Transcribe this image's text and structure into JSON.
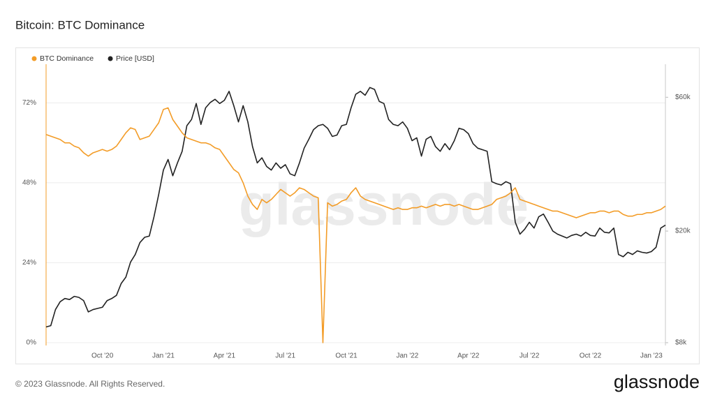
{
  "chart_data": {
    "type": "line",
    "title": "Bitcoin: BTC Dominance",
    "watermark": "glassnode",
    "categories": [
      null,
      null,
      null,
      null,
      null,
      null,
      null,
      null,
      null,
      null,
      null,
      null,
      "Oct '20",
      null,
      null,
      null,
      null,
      null,
      null,
      null,
      null,
      null,
      null,
      null,
      null,
      "Jan '21",
      null,
      null,
      null,
      null,
      null,
      null,
      null,
      null,
      null,
      null,
      null,
      null,
      "Apr '21",
      null,
      null,
      null,
      null,
      null,
      null,
      null,
      null,
      null,
      null,
      null,
      null,
      "Jul '21",
      null,
      null,
      null,
      null,
      null,
      null,
      null,
      null,
      null,
      null,
      null,
      null,
      "Oct '21",
      null,
      null,
      null,
      null,
      null,
      null,
      null,
      null,
      null,
      null,
      null,
      null,
      "Jan '22",
      null,
      null,
      null,
      null,
      null,
      null,
      null,
      null,
      null,
      null,
      null,
      null,
      "Apr '22",
      null,
      null,
      null,
      null,
      null,
      null,
      null,
      null,
      null,
      null,
      null,
      null,
      "Jul '22",
      null,
      null,
      null,
      null,
      null,
      null,
      null,
      null,
      null,
      null,
      null,
      null,
      "Oct '22",
      null,
      null,
      null,
      null,
      null,
      null,
      null,
      null,
      null,
      null,
      null,
      null,
      "Jan '23",
      null,
      null,
      null
    ],
    "series": [
      {
        "name": "BTC Dominance",
        "color": "#f39c27",
        "axis": "y",
        "values": [
          62.5,
          62,
          61.5,
          61,
          60,
          60,
          59,
          58.5,
          57,
          56,
          57,
          57.5,
          58,
          57.5,
          58,
          59,
          61,
          63,
          64.5,
          64,
          61,
          61.5,
          62,
          64,
          66,
          70,
          70.5,
          67,
          65,
          63,
          61.5,
          61,
          60.5,
          60,
          60,
          59.5,
          58.5,
          58,
          56,
          54,
          52,
          51,
          48,
          44,
          41.5,
          40,
          43,
          42,
          43,
          44.5,
          46,
          45,
          44,
          45,
          46.5,
          46,
          45,
          44,
          43.5,
          0,
          42,
          41,
          41.5,
          42.5,
          43,
          45,
          46.5,
          44,
          43,
          42.5,
          42,
          41.5,
          41,
          40.5,
          40,
          40.5,
          40,
          40,
          40.5,
          40.5,
          41,
          40.5,
          41,
          41.5,
          41,
          41.5,
          41.5,
          41,
          41.5,
          41,
          40.5,
          40,
          40,
          40.5,
          41,
          41.5,
          43,
          43.5,
          44,
          45,
          46.5,
          43,
          42.5,
          42,
          41.5,
          41,
          40.5,
          40,
          39.5,
          39.5,
          39,
          38.5,
          38,
          37.5,
          38,
          38.5,
          39,
          39,
          39.5,
          39.5,
          39,
          39.5,
          39.5,
          38.5,
          38,
          38,
          38.5,
          38.5,
          39,
          39,
          39.5,
          40,
          41
        ]
      },
      {
        "name": "Price [USD]",
        "color": "#222222",
        "axis": "y2",
        "values": [
          9100,
          9200,
          10500,
          11200,
          11500,
          11400,
          11700,
          11600,
          11300,
          10300,
          10500,
          10600,
          10700,
          11300,
          11500,
          11800,
          13000,
          13700,
          15500,
          16500,
          18200,
          19000,
          19200,
          22500,
          27000,
          33000,
          36000,
          31500,
          35000,
          38500,
          47500,
          50000,
          57000,
          48000,
          55000,
          57500,
          59000,
          57000,
          58500,
          63000,
          56000,
          49000,
          56000,
          49000,
          40000,
          35000,
          36500,
          34000,
          33000,
          35000,
          33500,
          34500,
          32000,
          31500,
          35000,
          39500,
          42500,
          46000,
          47500,
          48000,
          46500,
          43500,
          44000,
          47500,
          48000,
          55000,
          61500,
          63000,
          61000,
          65000,
          64000,
          58000,
          57000,
          50000,
          48000,
          47500,
          49000,
          46500,
          42000,
          43000,
          37000,
          42500,
          43500,
          40000,
          38500,
          41000,
          39000,
          42000,
          46500,
          46000,
          44500,
          41000,
          39500,
          39000,
          38500,
          30000,
          29500,
          29200,
          30000,
          29500,
          21500,
          19500,
          20300,
          21500,
          20500,
          22500,
          23000,
          21500,
          20000,
          19500,
          19200,
          18900,
          19300,
          19500,
          19200,
          19800,
          19300,
          19200,
          20500,
          19800,
          19700,
          20500,
          16500,
          16200,
          16800,
          16500,
          17000,
          16800,
          16700,
          16900,
          17500,
          20500,
          21000
        ]
      }
    ],
    "ylim": [
      0,
      83.6
    ],
    "yticks": [
      {
        "value": 0,
        "label": "0%"
      },
      {
        "value": 24,
        "label": "24%"
      },
      {
        "value": 48,
        "label": "48%"
      },
      {
        "value": 72,
        "label": "72%"
      }
    ],
    "y2lim": [
      8000,
      78700
    ],
    "y2scale": "log",
    "y2ticks": [
      {
        "value": 8000,
        "label": "$8k"
      },
      {
        "value": 20000,
        "label": "$20k"
      },
      {
        "value": 60000,
        "label": "$60k"
      }
    ],
    "grid": true,
    "legend": "top-left"
  },
  "footer": {
    "copyright": "© 2023 Glassnode. All Rights Reserved.",
    "logo": "glassnode"
  }
}
